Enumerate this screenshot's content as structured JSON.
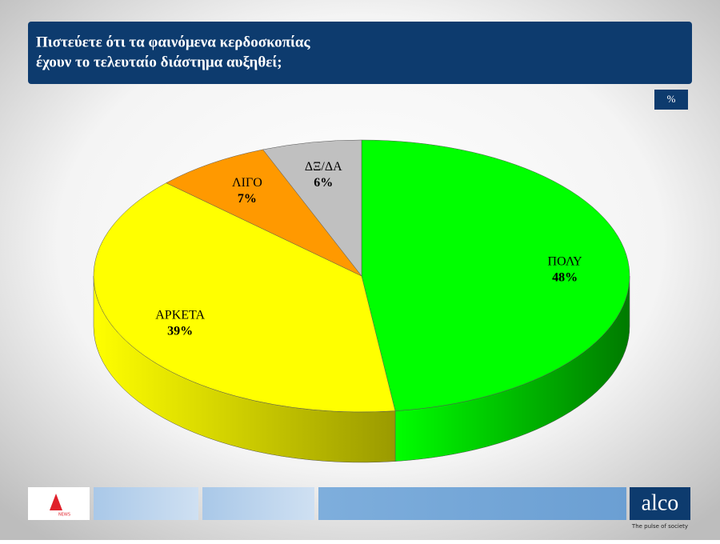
{
  "chart_data": {
    "type": "pie",
    "title": [
      "Πιστεύετε ότι τα φαινόμενα κερδοσκοπίας",
      "έχουν το τελευταίο διάστημα αυξηθεί;"
    ],
    "unit_badge": "%",
    "categories": [
      "ΠΟΛΥ",
      "ΑΡΚΕΤΑ",
      "ΛΙΓΟ",
      "ΔΞ/ΔΑ"
    ],
    "values": [
      48,
      39,
      7,
      6
    ],
    "value_labels": [
      "48%",
      "39%",
      "7%",
      "6%"
    ],
    "colors": [
      "#00ff00",
      "#ffff00",
      "#ff9900",
      "#c0c0c0"
    ],
    "side_colors": [
      "#007a00",
      "#9a9a00",
      "#b86a00",
      "#808080"
    ]
  },
  "footer": {
    "partner": "NEWS",
    "brand": "alco",
    "tagline": "The pulse of society"
  }
}
